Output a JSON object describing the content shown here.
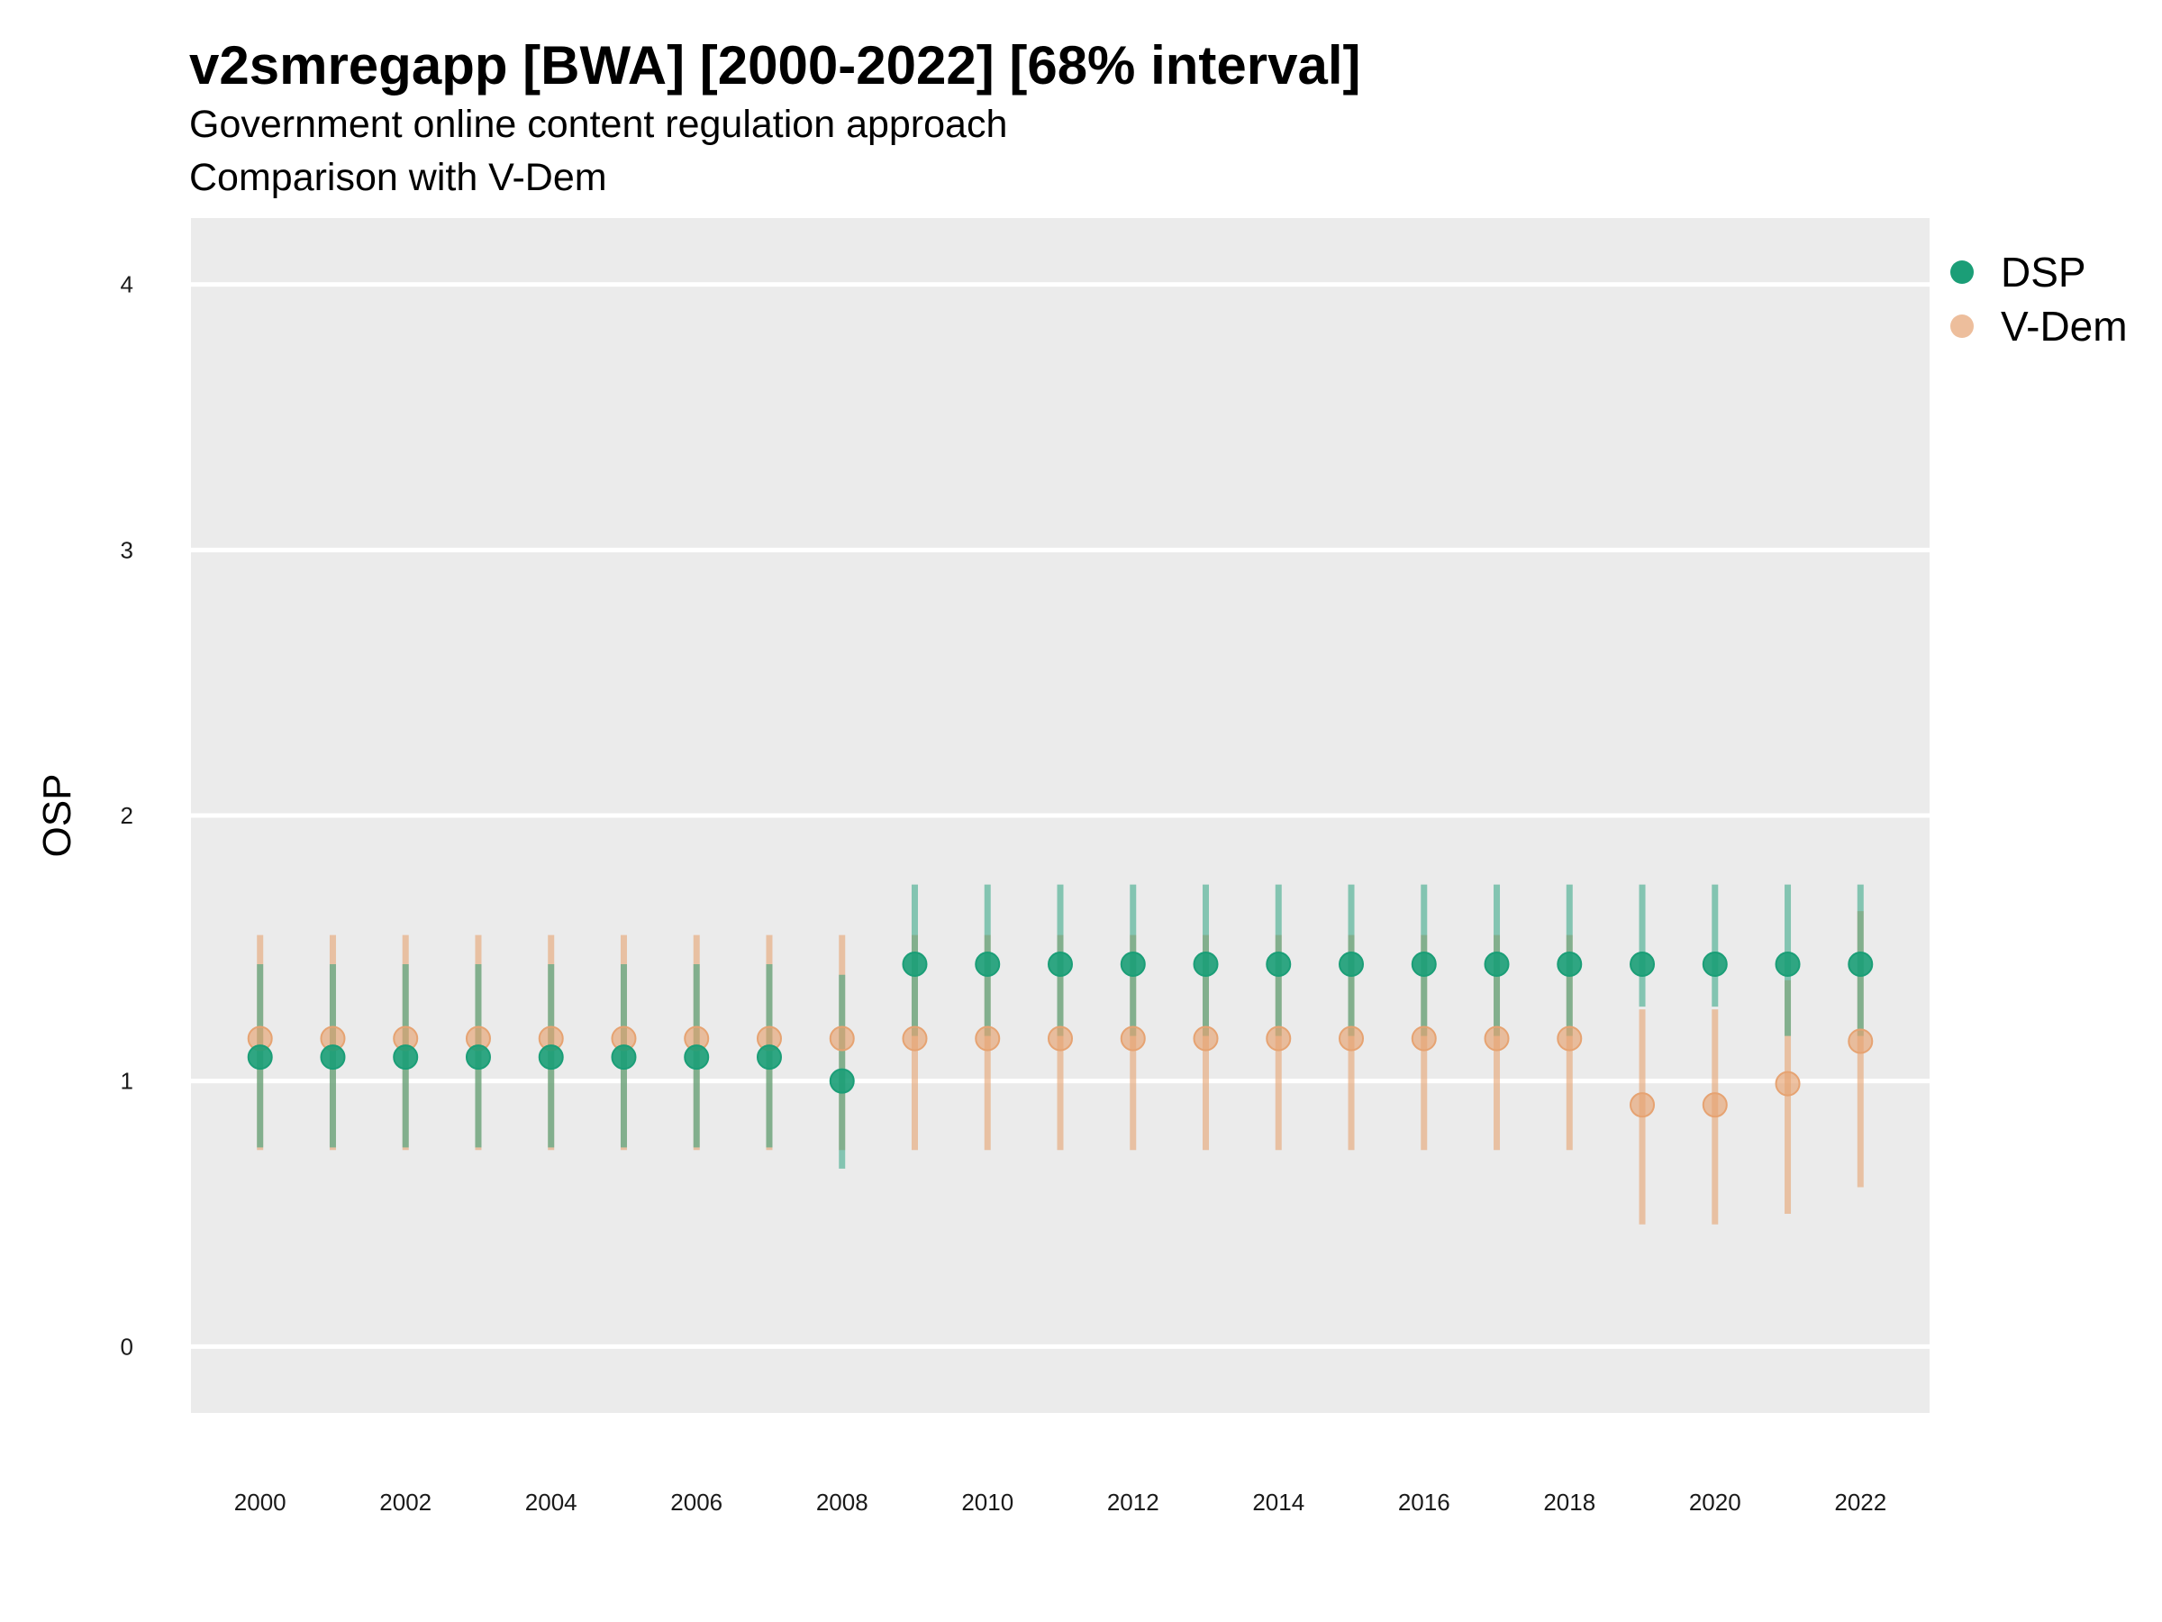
{
  "title": "v2smregapp [BWA] [2000-2022] [68% interval]",
  "subtitle": "Government online content regulation approach",
  "subtitle2": "Comparison with V-Dem",
  "colors": {
    "DSP": "#1b9e77",
    "V-Dem": "#e6a372",
    "panel": "#ebebeb",
    "grid": "#ffffff"
  },
  "chart_data": {
    "type": "scatter",
    "title": "v2smregapp [BWA] [2000-2022] [68% interval]",
    "xlabel": "",
    "ylabel": "OSP",
    "ylim": [
      -0.25,
      4.25
    ],
    "yticks": [
      0,
      1,
      2,
      3,
      4
    ],
    "xticks": [
      2000,
      2002,
      2004,
      2006,
      2008,
      2010,
      2012,
      2014,
      2016,
      2018,
      2020,
      2022
    ],
    "grid": true,
    "legend": "right",
    "x": [
      2000,
      2001,
      2002,
      2003,
      2004,
      2005,
      2006,
      2007,
      2008,
      2009,
      2010,
      2011,
      2012,
      2013,
      2014,
      2015,
      2016,
      2017,
      2018,
      2019,
      2020,
      2021,
      2022
    ],
    "series": [
      {
        "name": "DSP",
        "values": [
          1.09,
          1.09,
          1.09,
          1.09,
          1.09,
          1.09,
          1.09,
          1.09,
          1.0,
          1.44,
          1.44,
          1.44,
          1.44,
          1.44,
          1.44,
          1.44,
          1.44,
          1.44,
          1.44,
          1.44,
          1.44,
          1.44,
          1.44
        ],
        "lower": [
          0.75,
          0.75,
          0.75,
          0.75,
          0.75,
          0.75,
          0.75,
          0.75,
          0.67,
          1.17,
          1.17,
          1.17,
          1.17,
          1.17,
          1.17,
          1.17,
          1.17,
          1.17,
          1.17,
          1.28,
          1.28,
          1.17,
          1.17
        ],
        "upper": [
          1.44,
          1.44,
          1.44,
          1.44,
          1.44,
          1.44,
          1.44,
          1.44,
          1.4,
          1.74,
          1.74,
          1.74,
          1.74,
          1.74,
          1.74,
          1.74,
          1.74,
          1.74,
          1.74,
          1.74,
          1.74,
          1.74,
          1.74
        ]
      },
      {
        "name": "V-Dem",
        "values": [
          1.16,
          1.16,
          1.16,
          1.16,
          1.16,
          1.16,
          1.16,
          1.16,
          1.16,
          1.16,
          1.16,
          1.16,
          1.16,
          1.16,
          1.16,
          1.16,
          1.16,
          1.16,
          1.16,
          0.91,
          0.91,
          0.99,
          1.15
        ],
        "lower": [
          0.74,
          0.74,
          0.74,
          0.74,
          0.74,
          0.74,
          0.74,
          0.74,
          0.74,
          0.74,
          0.74,
          0.74,
          0.74,
          0.74,
          0.74,
          0.74,
          0.74,
          0.74,
          0.74,
          0.46,
          0.46,
          0.5,
          0.6
        ],
        "upper": [
          1.55,
          1.55,
          1.55,
          1.55,
          1.55,
          1.55,
          1.55,
          1.55,
          1.55,
          1.55,
          1.55,
          1.55,
          1.55,
          1.55,
          1.55,
          1.55,
          1.55,
          1.55,
          1.55,
          1.27,
          1.27,
          1.38,
          1.64
        ]
      }
    ]
  }
}
